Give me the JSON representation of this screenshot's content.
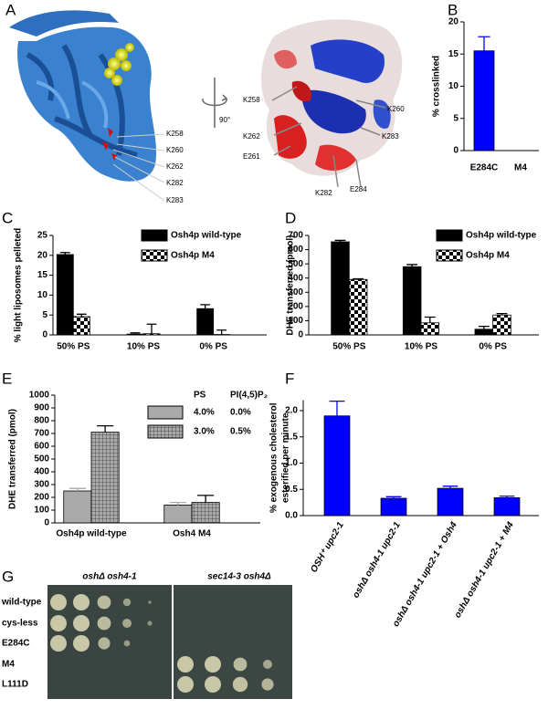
{
  "panel_labels": [
    "A",
    "B",
    "C",
    "D",
    "E",
    "F",
    "G"
  ],
  "panel_a": {
    "ribbon_labels": [
      "K258",
      "K260",
      "K262",
      "K282",
      "K283"
    ],
    "rotation": "90°",
    "surface_labels": [
      "K258",
      "K262",
      "E261",
      "K260",
      "K283",
      "K282",
      "E284"
    ]
  },
  "chart_data": [
    {
      "type": "bar",
      "ylabel": "% crosslinked",
      "categories": [
        "E284C",
        "M4"
      ],
      "series": [
        {
          "color": "#0000ff",
          "values": [
            15.5,
            0
          ],
          "errors": [
            2.2,
            null
          ]
        }
      ],
      "ylim": [
        0,
        20
      ],
      "yticks": [
        0,
        5,
        10,
        15,
        20
      ]
    },
    {
      "type": "bar",
      "ylabel": "% light liposomes pelleted",
      "categories": [
        "50% PS",
        "10% PS",
        "0% PS"
      ],
      "series": [
        {
          "name": "Osh4p wild-type",
          "color": "#000000",
          "values": [
            20.2,
            0.2,
            6.6
          ],
          "errors": [
            0.5,
            0.3,
            1.0
          ]
        },
        {
          "name": "Osh4p M4",
          "color": "#000000",
          "pattern": "checker",
          "values": [
            4.6,
            0.3,
            0.1
          ],
          "errors": [
            0.6,
            2.4,
            1.1
          ]
        }
      ],
      "ylim": [
        0,
        25
      ],
      "yticks": [
        0,
        5,
        10,
        15,
        20,
        25
      ]
    },
    {
      "type": "bar",
      "ylabel": "DHE transferred (pmol)",
      "categories": [
        "50% PS",
        "10% PS",
        "0% PS"
      ],
      "series": [
        {
          "name": "Osh4p wild-type",
          "color": "#000000",
          "values": [
            655,
            480,
            40
          ],
          "errors": [
            10,
            15,
            20
          ]
        },
        {
          "name": "Osh4p M4",
          "color": "#000000",
          "pattern": "checker",
          "values": [
            390,
            85,
            140
          ],
          "errors": [
            5,
            40,
            10
          ]
        }
      ],
      "ylim": [
        0,
        700
      ],
      "yticks": [
        0,
        100,
        200,
        300,
        400,
        500,
        600,
        700
      ]
    },
    {
      "type": "bar",
      "ylabel": "DHE transferred (pmol)",
      "categories": [
        "Osh4p wild-type",
        "Osh4 M4"
      ],
      "legend_table": {
        "header": [
          "PS",
          "PI(4,5)P₂"
        ],
        "rows": [
          [
            "4.0%",
            "0.0%"
          ],
          [
            "3.0%",
            "0.5%"
          ]
        ]
      },
      "series": [
        {
          "color": "#aaaaaa",
          "values": [
            250,
            140
          ],
          "errors": [
            20,
            20
          ]
        },
        {
          "color": "#aaaaaa",
          "pattern": "grid",
          "values": [
            710,
            160
          ],
          "errors": [
            50,
            55
          ]
        }
      ],
      "ylim": [
        0,
        1000
      ],
      "yticks": [
        0,
        100,
        200,
        300,
        400,
        500,
        600,
        700,
        800,
        900,
        1000
      ]
    },
    {
      "type": "bar",
      "ylabel": [
        "% exogenous cholesterol",
        "esterified per minute"
      ],
      "categories": [
        "OSH⁺ upc2-1",
        "oshΔ osh4-1 upc2-1",
        "oshΔ osh4-1 upc2-1 + Osh4",
        "oshΔ osh4-1 upc2-1 + M4"
      ],
      "series": [
        {
          "color": "#0000ff",
          "values": [
            1.9,
            0.33,
            0.52,
            0.34
          ],
          "errors": [
            0.28,
            0.03,
            0.04,
            0.03
          ]
        }
      ],
      "ylim": [
        0,
        2.2
      ],
      "yticks": [
        {
          "value": 0,
          "label": "0.0"
        },
        {
          "value": 0.5,
          "label": "0.5"
        },
        {
          "value": 1,
          "label": "1.0"
        },
        {
          "value": 1.5,
          "label": "1.5"
        },
        {
          "value": 2,
          "label": "2.0"
        }
      ]
    }
  ],
  "panel_g": {
    "column_headers": [
      "oshΔ osh4-1",
      "sec14-3 osh4Δ"
    ],
    "rows": [
      "wild-type",
      "cys-less",
      "E284C",
      "M4",
      "L111D"
    ]
  }
}
